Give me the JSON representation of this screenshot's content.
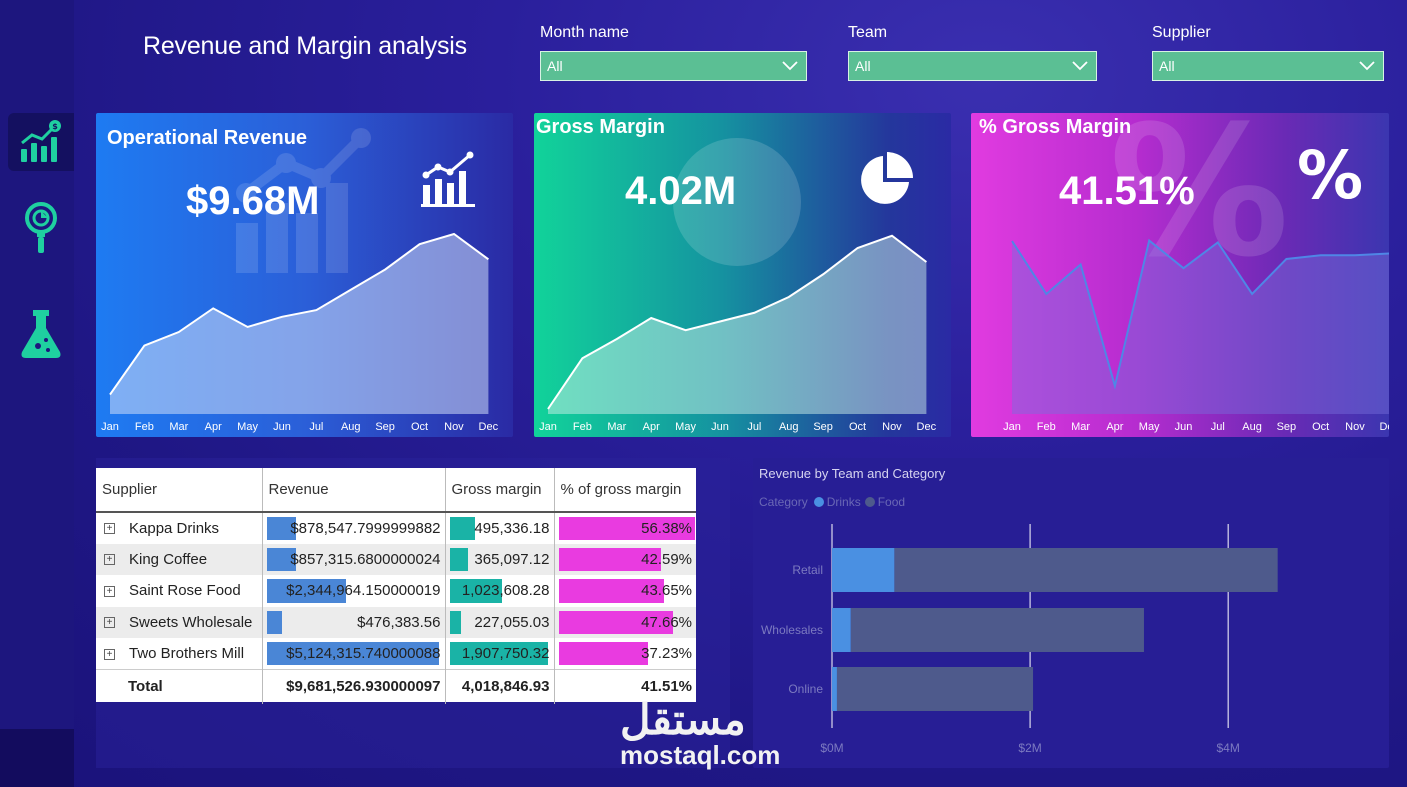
{
  "title": "Revenue and Margin analysis",
  "slicers": [
    {
      "label": "Month name",
      "value": "All"
    },
    {
      "label": "Team",
      "value": "All"
    },
    {
      "label": "Supplier",
      "value": "All"
    }
  ],
  "kpis": {
    "revenue": {
      "name": "Operational Revenue",
      "value": "$9.68M",
      "icon": "growth-chart-icon"
    },
    "margin": {
      "name": "Gross Margin",
      "value": "4.02M",
      "icon": "pie-chart-icon"
    },
    "pct": {
      "name": "% Gross Margin",
      "value": "41.51%",
      "icon": "percent-icon"
    }
  },
  "months": [
    "Jan",
    "Feb",
    "Mar",
    "Apr",
    "May",
    "Jun",
    "Jul",
    "Aug",
    "Sep",
    "Oct",
    "Nov",
    "Dec"
  ],
  "table": {
    "headers": [
      "Supplier",
      "Revenue",
      "Gross margin",
      "% of gross margin"
    ],
    "rows": [
      {
        "supplier": "Kappa Drinks",
        "revenue": "$878,547.7999999882",
        "margin": "495,336.18",
        "pct": "56.38%",
        "rev_frac": 0.17,
        "mar_frac": 0.26,
        "pct_frac": 1.0
      },
      {
        "supplier": "King Coffee",
        "revenue": "$857,315.6800000024",
        "margin": "365,097.12",
        "pct": "42.59%",
        "rev_frac": 0.17,
        "mar_frac": 0.19,
        "pct_frac": 0.755
      },
      {
        "supplier": "Saint Rose Food",
        "revenue": "$2,344,964.150000019",
        "margin": "1,023,608.28",
        "pct": "43.65%",
        "rev_frac": 0.46,
        "mar_frac": 0.54,
        "pct_frac": 0.774
      },
      {
        "supplier": "Sweets Wholesale",
        "revenue": "$476,383.56",
        "margin": "227,055.03",
        "pct": "47.66%",
        "rev_frac": 0.09,
        "mar_frac": 0.12,
        "pct_frac": 0.845
      },
      {
        "supplier": "Two Brothers Mill",
        "revenue": "$5,124,315.740000088",
        "margin": "1,907,750.32",
        "pct": "37.23%",
        "rev_frac": 1.0,
        "mar_frac": 1.0,
        "pct_frac": 0.66
      }
    ],
    "total": {
      "label": "Total",
      "revenue": "$9,681,526.930000097",
      "margin": "4,018,846.93",
      "pct": "41.51%"
    }
  },
  "colors": {
    "drinks": "#4a90e2",
    "food": "#4e5a8c",
    "rev_bar": "#4a86d6",
    "margin_bar": "#1ab3a6",
    "pct_bar": "#e93be0"
  },
  "chart_data": {
    "type": "bar",
    "title": "Revenue by Team and Category",
    "legend_title": "Category",
    "categories": [
      "Retail",
      "Wholesales",
      "Online"
    ],
    "series": [
      {
        "name": "Drinks",
        "values": [
          0.63,
          0.19,
          0.05
        ]
      },
      {
        "name": "Food",
        "values": [
          3.87,
          2.96,
          1.98
        ]
      }
    ],
    "x_ticks": [
      "$0M",
      "$2M",
      "$4M"
    ],
    "xlim": [
      0,
      5.2
    ],
    "stacked": true,
    "orientation": "horizontal"
  },
  "kpi_series": {
    "revenue": [
      0.05,
      0.34,
      0.42,
      0.56,
      0.45,
      0.51,
      0.55,
      0.67,
      0.79,
      0.94,
      1.0,
      0.85
    ],
    "margin": [
      0.0,
      0.29,
      0.4,
      0.52,
      0.45,
      0.5,
      0.55,
      0.64,
      0.77,
      0.92,
      0.99,
      0.84
    ],
    "pct": [
      56.38,
      42.0,
      50.0,
      17.0,
      56.5,
      49.0,
      56.0,
      42.0,
      51.5,
      52.5,
      52.5,
      53.0
    ]
  },
  "watermark": {
    "arabic": "مستقل",
    "latin": "mostaql.com"
  }
}
